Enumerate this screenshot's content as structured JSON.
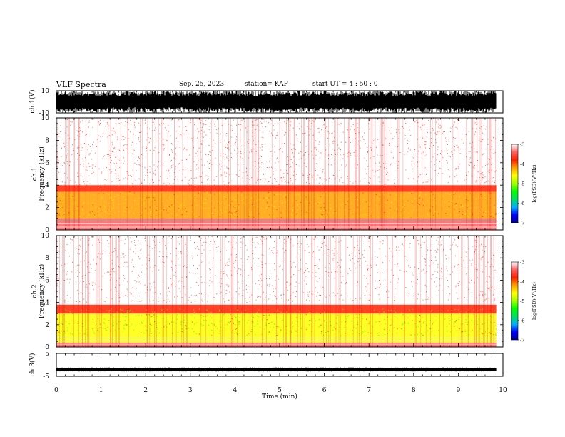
{
  "header": {
    "title": "VLF Spectra",
    "date": "Sep. 25, 2023",
    "station": "station= KAP",
    "start_ut": "start  UT =   4 : 50 : 0"
  },
  "chart_data": [
    {
      "type": "line",
      "panel": "ch1-waveform",
      "ylabel": "ch.1(V)",
      "ylim": [
        -10,
        10
      ],
      "ytick_labels": [
        "10",
        "-10"
      ],
      "xlim": [
        0,
        10
      ],
      "description_values": "dense waveform filling roughly -10 to +10 V over 0-9.85 min"
    },
    {
      "type": "heatmap",
      "panel": "ch1-spectrogram",
      "ylabel": "ch.1\nFrequency (kHz)",
      "ylabel_line1": "ch.1",
      "ylabel_line2": "Frequency (kHz)",
      "ylim": [
        0,
        10
      ],
      "ytick_labels": [
        "0",
        "2",
        "4",
        "6",
        "8",
        "10"
      ],
      "xlim": [
        0,
        10
      ],
      "data_extent_min": 9.85,
      "bands": [
        {
          "from_khz": 0.0,
          "to_khz": 0.3,
          "level": -3.6
        },
        {
          "from_khz": 0.3,
          "to_khz": 1.0,
          "level": -3.4
        },
        {
          "from_khz": 1.0,
          "to_khz": 3.4,
          "level": -4.1
        },
        {
          "from_khz": 3.4,
          "to_khz": 4.0,
          "level": -3.7
        },
        {
          "from_khz": 4.0,
          "to_khz": 10.0,
          "level": -3.1
        }
      ],
      "colorbar": {
        "label": "log(PSD)(V²/Hz)",
        "ticks": [
          "-3",
          "-4",
          "-5",
          "-6",
          "-7"
        ],
        "range": [
          -7,
          -3
        ]
      }
    },
    {
      "type": "heatmap",
      "panel": "ch2-spectrogram",
      "ylabel": "ch.2\nFrequency (kHz)",
      "ylabel_line1": "ch.2",
      "ylabel_line2": "Frequency (kHz)",
      "ylim": [
        0,
        10
      ],
      "ytick_labels": [
        "0",
        "2",
        "4",
        "6",
        "8",
        "10"
      ],
      "xlim": [
        0,
        10
      ],
      "data_extent_min": 9.85,
      "bands": [
        {
          "from_khz": 0.0,
          "to_khz": 0.4,
          "level": -3.6
        },
        {
          "from_khz": 0.4,
          "to_khz": 3.0,
          "level": -4.7
        },
        {
          "from_khz": 3.0,
          "to_khz": 3.8,
          "level": -3.9
        },
        {
          "from_khz": 3.8,
          "to_khz": 10.0,
          "level": -3.1
        }
      ],
      "colorbar": {
        "label": "log(PSD)(V²/Hz)",
        "ticks": [
          "-3",
          "-4",
          "-5",
          "-6",
          "-7"
        ],
        "range": [
          -7,
          -3
        ]
      }
    },
    {
      "type": "line",
      "panel": "ch3-waveform",
      "ylabel": "ch.3(V)",
      "ylim": [
        -5,
        5
      ],
      "ytick_labels": [
        "5",
        "-5"
      ],
      "xlim": [
        0,
        10
      ],
      "description_values": "thin band around -2 V over 0-9.85 min"
    }
  ],
  "x_axis": {
    "label": "Time (min)",
    "ticks": [
      "0",
      "1",
      "2",
      "3",
      "4",
      "5",
      "6",
      "7",
      "8",
      "9",
      "10"
    ]
  },
  "colors": {
    "cmap": [
      "#000090",
      "#0000ff",
      "#00b0ff",
      "#00e060",
      "#00ff00",
      "#a0ff00",
      "#ffff00",
      "#ffa000",
      "#ff2000",
      "#ff6060",
      "#ffffff"
    ]
  }
}
